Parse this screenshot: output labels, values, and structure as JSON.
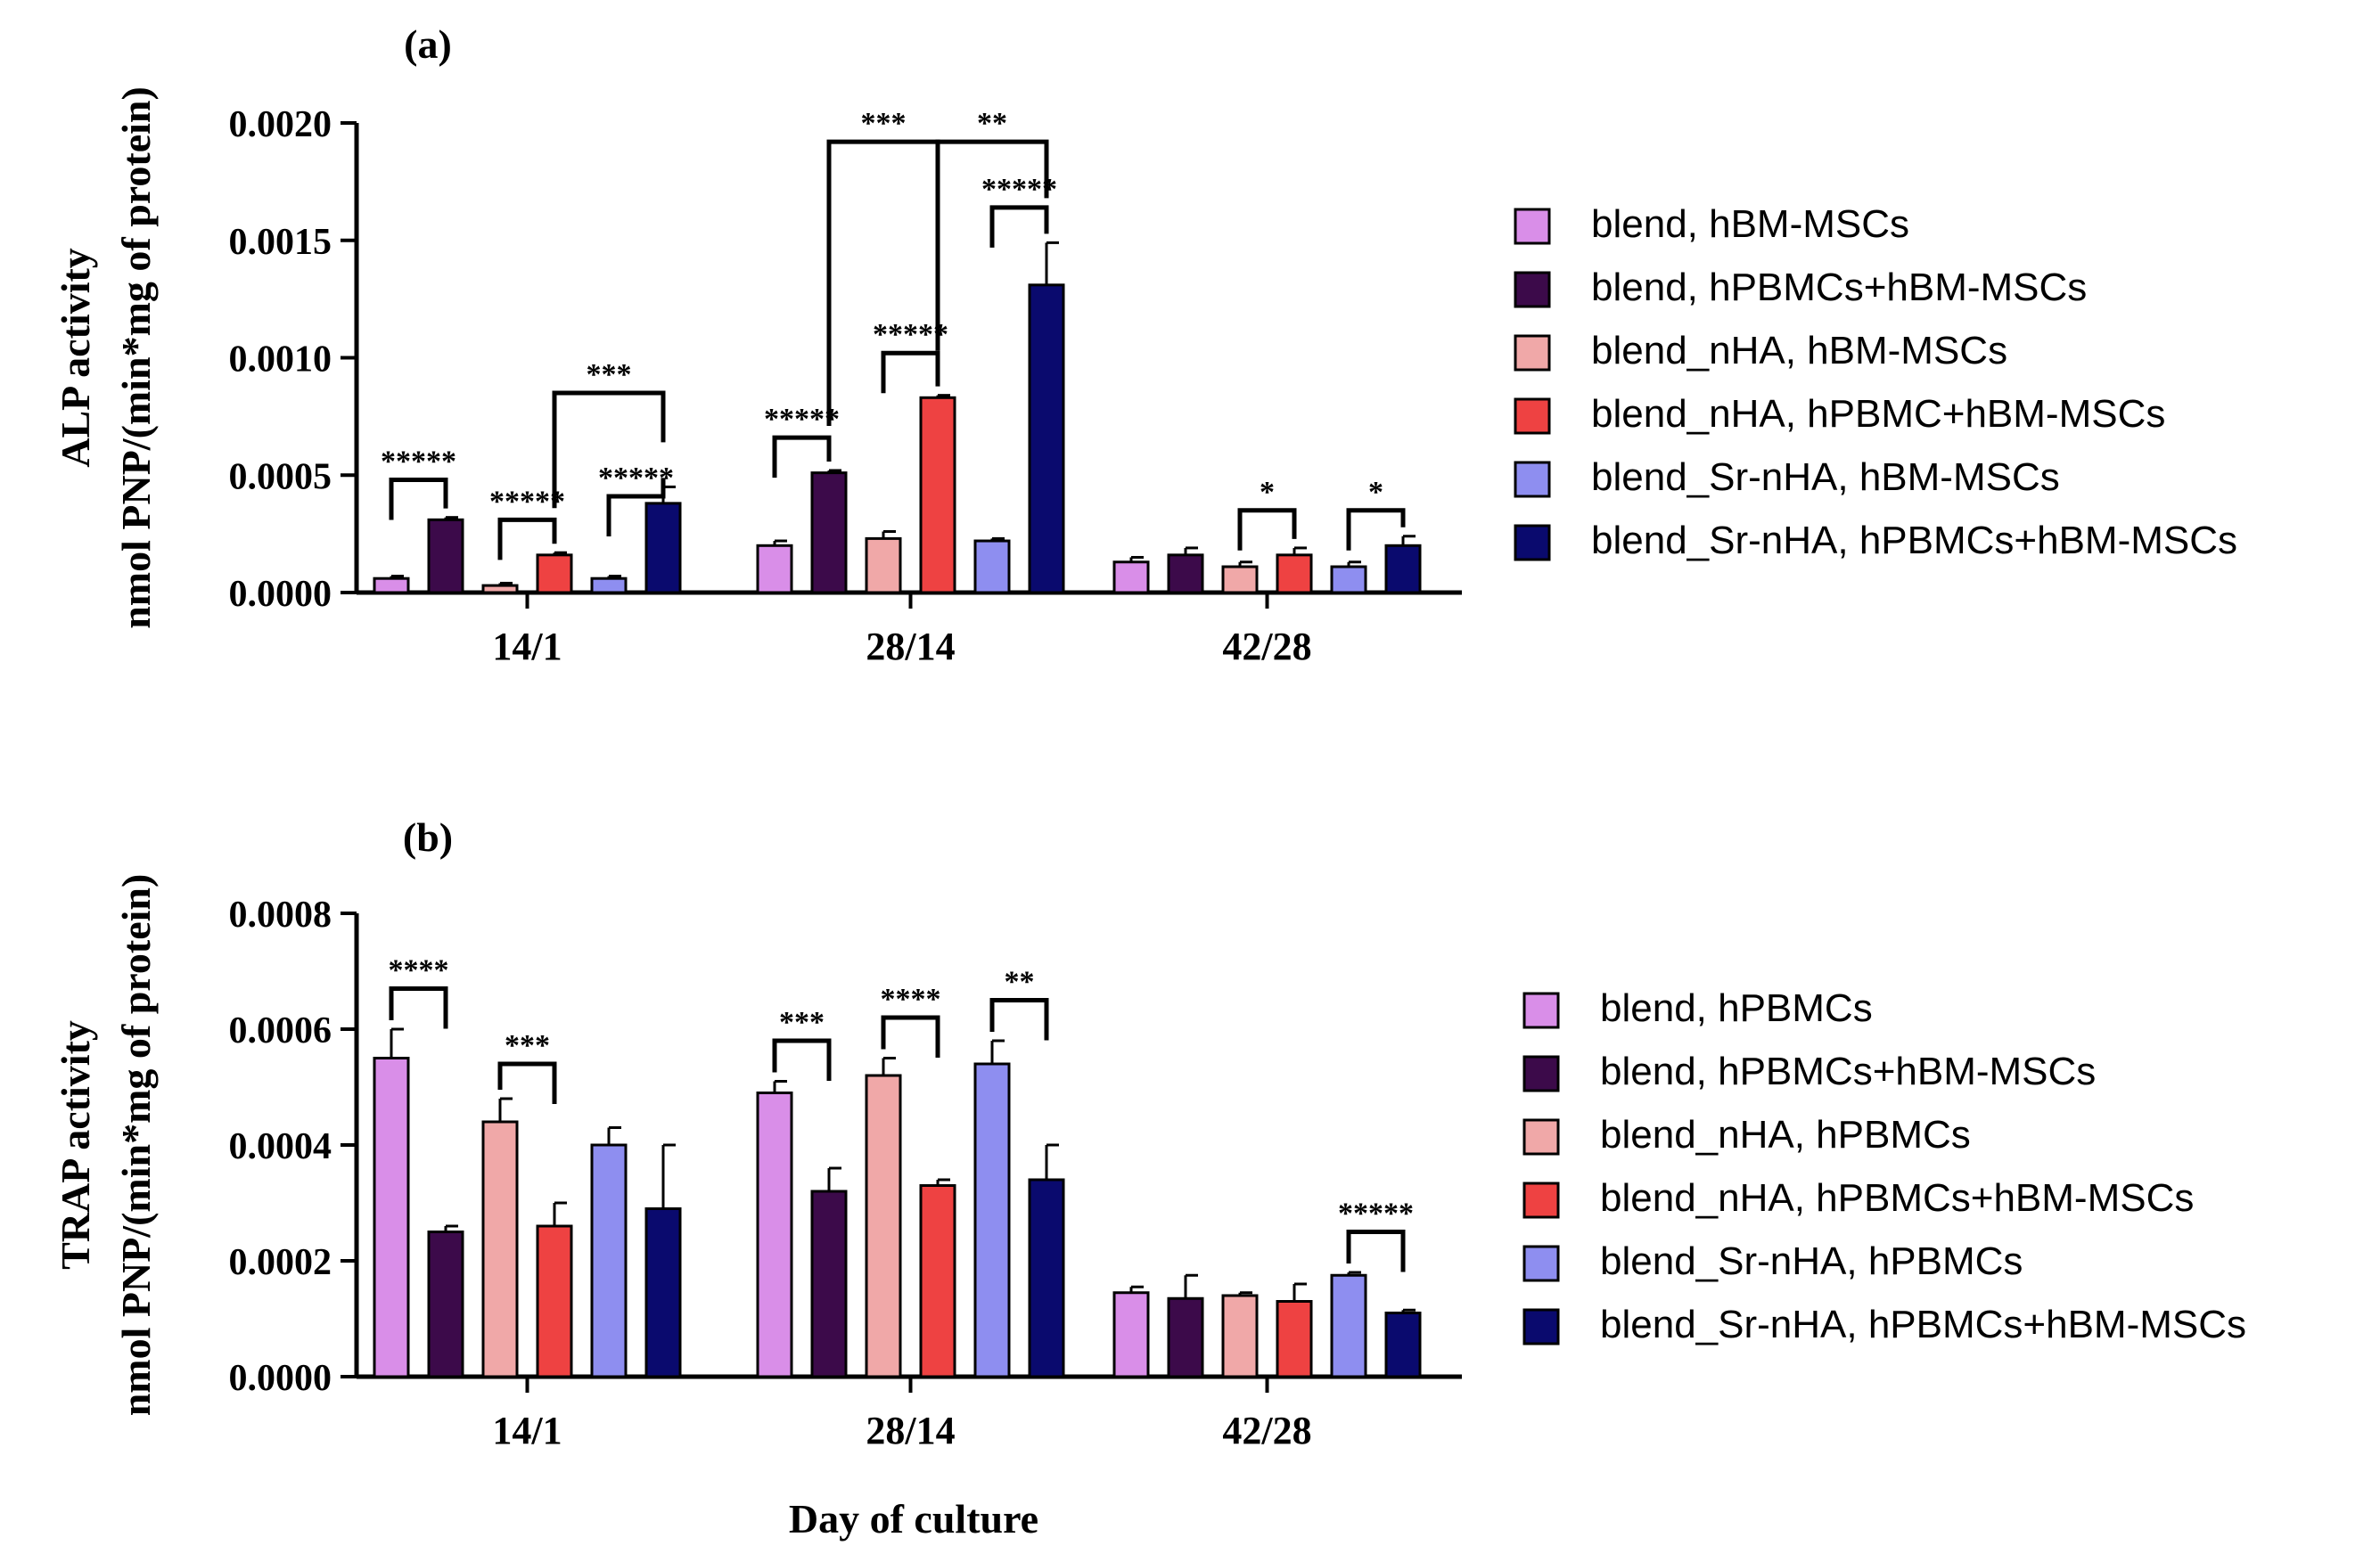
{
  "xlabel_common": "Day of culture",
  "chart_data": [
    {
      "type": "bar",
      "panel_label": "(a)",
      "ylabel_line1": "ALP activity",
      "ylabel_line2": "nmol PNP/(min*mg of protein)",
      "categories": [
        "14/1",
        "28/14",
        "42/28"
      ],
      "ylim": [
        0,
        0.002
      ],
      "yticks": [
        "0.0000",
        "0.0005",
        "0.0010",
        "0.0015",
        "0.0020"
      ],
      "ytick_values": [
        0,
        0.0005,
        0.001,
        0.0015,
        0.002
      ],
      "legend_placement": "right",
      "series": [
        {
          "name": "blend, hBM-MSCs",
          "color": "#d98ee8",
          "values": [
            6e-05,
            0.0002,
            0.00013
          ],
          "errors": [
            1e-05,
            2e-05,
            2e-05
          ]
        },
        {
          "name": "blend, hPBMCs+hBM-MSCs",
          "color": "#3c0a4a",
          "values": [
            0.00031,
            0.00051,
            0.00016
          ],
          "errors": [
            1e-05,
            1e-05,
            3e-05
          ]
        },
        {
          "name": "blend_nHA, hBM-MSCs",
          "color": "#f0a8a8",
          "values": [
            3e-05,
            0.00023,
            0.00011
          ],
          "errors": [
            1e-05,
            3e-05,
            2e-05
          ]
        },
        {
          "name": "blend_nHA, hPBMC+hBM-MSCs",
          "color": "#ee4242",
          "values": [
            0.00016,
            0.00083,
            0.00016
          ],
          "errors": [
            1e-05,
            1e-05,
            3e-05
          ]
        },
        {
          "name": "blend_Sr-nHA, hBM-MSCs",
          "color": "#8e8ef0",
          "values": [
            6e-05,
            0.00022,
            0.00011
          ],
          "errors": [
            1e-05,
            1e-05,
            2e-05
          ]
        },
        {
          "name": "blend_Sr-nHA, hPBMCs+hBM-MSCs",
          "color": "#0a0a6e",
          "values": [
            0.00038,
            0.00131,
            0.0002
          ],
          "errors": [
            7e-05,
            0.00018,
            4e-05
          ]
        }
      ],
      "annotations": [
        {
          "text": "*****",
          "group": 0,
          "from": 0,
          "to": 1,
          "y": 0.00048
        },
        {
          "text": "*****",
          "group": 0,
          "from": 2,
          "to": 3,
          "y": 0.00031
        },
        {
          "text": "*****",
          "group": 0,
          "from": 4,
          "to": 5,
          "y": 0.00041
        },
        {
          "text": "***",
          "group": 0,
          "from": 3,
          "to": 5,
          "y": 0.00085,
          "bridge": true
        },
        {
          "text": "*****",
          "group": 1,
          "from": 0,
          "to": 1,
          "y": 0.00066
        },
        {
          "text": "*****",
          "group": 1,
          "from": 2,
          "to": 3,
          "y": 0.00102
        },
        {
          "text": "*****",
          "group": 1,
          "from": 4,
          "to": 5,
          "y": 0.00164
        },
        {
          "text": "***",
          "group": 1,
          "from": 1,
          "to": 3,
          "y": 0.00192,
          "bridge": true
        },
        {
          "text": "**",
          "group": 1,
          "from": 3,
          "to": 5,
          "y": 0.00192,
          "bridge": true
        },
        {
          "text": "*",
          "group": 2,
          "from": 2,
          "to": 3,
          "y": 0.00035
        },
        {
          "text": "*",
          "group": 2,
          "from": 4,
          "to": 5,
          "y": 0.00035
        }
      ]
    },
    {
      "type": "bar",
      "panel_label": "(b)",
      "ylabel_line1": "TRAP activity",
      "ylabel_line2": "nmol PNP/(min*mg of protein)",
      "categories": [
        "14/1",
        "28/14",
        "42/28"
      ],
      "ylim": [
        0,
        0.0008
      ],
      "yticks": [
        "0.0000",
        "0.0002",
        "0.0004",
        "0.0006",
        "0.0008"
      ],
      "ytick_values": [
        0,
        0.0002,
        0.0004,
        0.0006,
        0.0008
      ],
      "legend_placement": "right",
      "series": [
        {
          "name": "blend, hPBMCs",
          "color": "#d98ee8",
          "values": [
            0.00055,
            0.00049,
            0.000145
          ],
          "errors": [
            5e-05,
            2e-05,
            1e-05
          ]
        },
        {
          "name": "blend, hPBMCs+hBM-MSCs",
          "color": "#3c0a4a",
          "values": [
            0.00025,
            0.00032,
            0.000135
          ],
          "errors": [
            1e-05,
            4e-05,
            4e-05
          ]
        },
        {
          "name": "blend_nHA, hPBMCs",
          "color": "#f0a8a8",
          "values": [
            0.00044,
            0.00052,
            0.00014
          ],
          "errors": [
            4e-05,
            3e-05,
            5e-06
          ]
        },
        {
          "name": "blend_nHA, hPBMCs+hBM-MSCs",
          "color": "#ee4242",
          "values": [
            0.00026,
            0.00033,
            0.00013
          ],
          "errors": [
            4e-05,
            1e-05,
            3e-05
          ]
        },
        {
          "name": "blend_Sr-nHA, hPBMCs",
          "color": "#8e8ef0",
          "values": [
            0.0004,
            0.00054,
            0.000175
          ],
          "errors": [
            3e-05,
            4e-05,
            5e-06
          ]
        },
        {
          "name": "blend_Sr-nHA, hPBMCs+hBM-MSCs",
          "color": "#0a0a6e",
          "values": [
            0.00029,
            0.00034,
            0.00011
          ],
          "errors": [
            0.00011,
            6e-05,
            5e-06
          ]
        }
      ],
      "annotations": [
        {
          "text": "****",
          "group": 0,
          "from": 0,
          "to": 1,
          "y": 0.00067
        },
        {
          "text": "***",
          "group": 0,
          "from": 2,
          "to": 3,
          "y": 0.00054
        },
        {
          "text": "***",
          "group": 1,
          "from": 0,
          "to": 1,
          "y": 0.00058
        },
        {
          "text": "****",
          "group": 1,
          "from": 2,
          "to": 3,
          "y": 0.00062
        },
        {
          "text": "**",
          "group": 1,
          "from": 4,
          "to": 5,
          "y": 0.00065
        },
        {
          "text": "*****",
          "group": 2,
          "from": 4,
          "to": 5,
          "y": 0.00025
        }
      ]
    }
  ]
}
